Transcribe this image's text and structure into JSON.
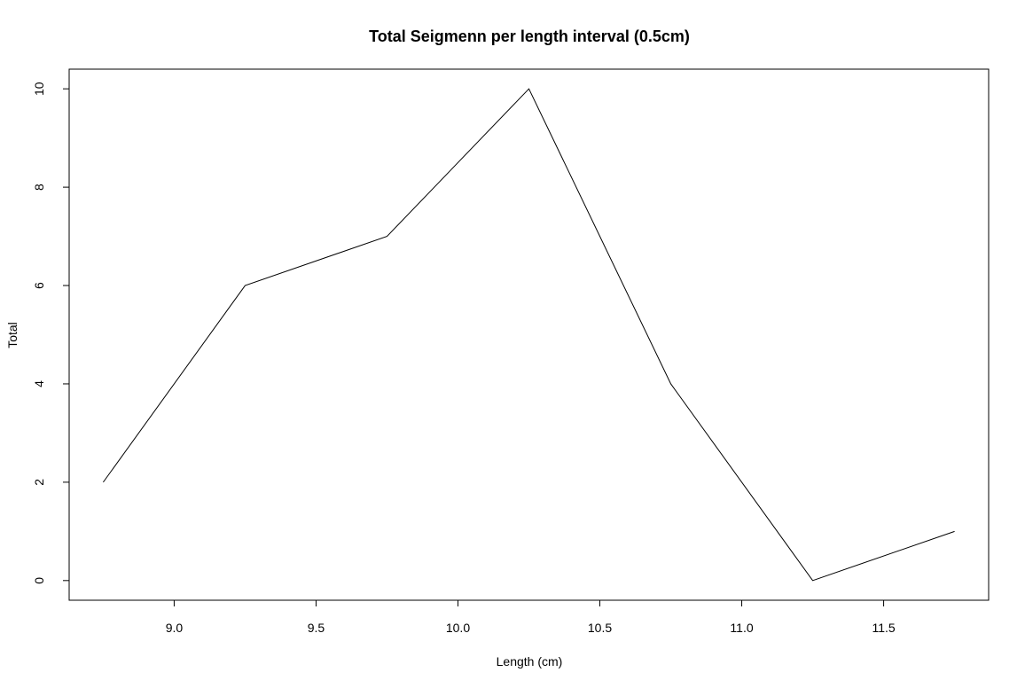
{
  "chart_data": {
    "type": "line",
    "title": "Total Seigmenn per length interval (0.5cm)",
    "xlabel": "Length (cm)",
    "ylabel": "Total",
    "x": [
      8.75,
      9.25,
      9.75,
      10.25,
      10.75,
      11.25,
      11.75
    ],
    "series": [
      {
        "values": [
          2,
          6,
          7,
          10,
          4,
          0,
          1
        ],
        "color": "#000000"
      }
    ],
    "x_ticks": [
      9.0,
      9.5,
      10.0,
      10.5,
      11.0,
      11.5
    ],
    "x_tick_labels": [
      "9.0",
      "9.5",
      "10.0",
      "10.5",
      "11.0",
      "11.5"
    ],
    "y_ticks": [
      0,
      2,
      4,
      6,
      8,
      10
    ],
    "y_tick_labels": [
      "0",
      "2",
      "4",
      "6",
      "8",
      "10"
    ],
    "xlim": [
      8.63,
      11.87
    ],
    "ylim": [
      -0.4,
      10.4
    ],
    "grid": false,
    "legend": "none"
  }
}
